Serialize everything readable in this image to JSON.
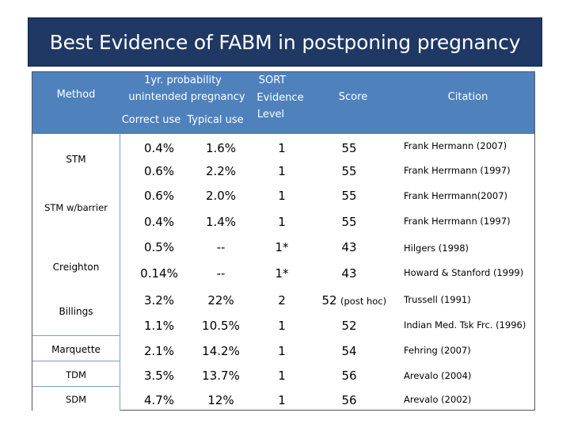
{
  "title": "Best Evidence of FABM in postponing pregnancy",
  "header": {
    "method": "Method",
    "prob_line1": "1yr. probability",
    "prob_line2": "unintended pregnancy",
    "correct": "Correct use",
    "typical": "Typical use",
    "sort1": "SORT",
    "sort2": "Evidence",
    "sort3": "Level",
    "score": "Score",
    "citation": "Citation"
  },
  "methods": [
    "STM",
    "STM w/barrier",
    "Creighton",
    "Billings",
    "Marquette",
    "TDM",
    "SDM"
  ],
  "rows": [
    {
      "correct": "0.4%",
      "typical": "1.6%",
      "sort": "1",
      "score": "55",
      "citation": "Frank Hermann (2007)"
    },
    {
      "correct": "0.6%",
      "typical": "2.2%",
      "sort": "1",
      "score": "55",
      "citation": "Frank Herrmann (1997)"
    },
    {
      "correct": "0.6%",
      "typical": "2.0%",
      "sort": "1",
      "score": "55",
      "citation": "Frank Herrmann(2007)"
    },
    {
      "correct": "0.4%",
      "typical": "1.4%",
      "sort": "1",
      "score": "55",
      "citation": "Frank Herrmann (1997)"
    },
    {
      "correct": "0.5%",
      "typical": "--",
      "sort": "1*",
      "score": "43",
      "citation": "Hilgers (1998)"
    },
    {
      "correct": "0.14%",
      "typical": "--",
      "sort": "1*",
      "score": "43",
      "citation": "Howard & Stanford (1999)"
    },
    {
      "correct": "3.2%",
      "typical": "22%",
      "sort": "2",
      "score": "52",
      "score_note": "(post hoc)",
      "citation": "Trussell (1991)"
    },
    {
      "correct": "1.1%",
      "typical": "10.5%",
      "sort": "1",
      "score": "52",
      "citation": "Indian Med. Tsk Frc. (1996)"
    },
    {
      "correct": "2.1%",
      "typical": "14.2%",
      "sort": "1",
      "score": "54",
      "citation": "Fehring (2007)"
    },
    {
      "correct": "3.5%",
      "typical": "13.7%",
      "sort": "1",
      "score": "56",
      "citation": "Arevalo (2004)"
    },
    {
      "correct": "4.7%",
      "typical": "12%",
      "sort": "1",
      "score": "56",
      "citation": "Arevalo (2002)"
    }
  ]
}
